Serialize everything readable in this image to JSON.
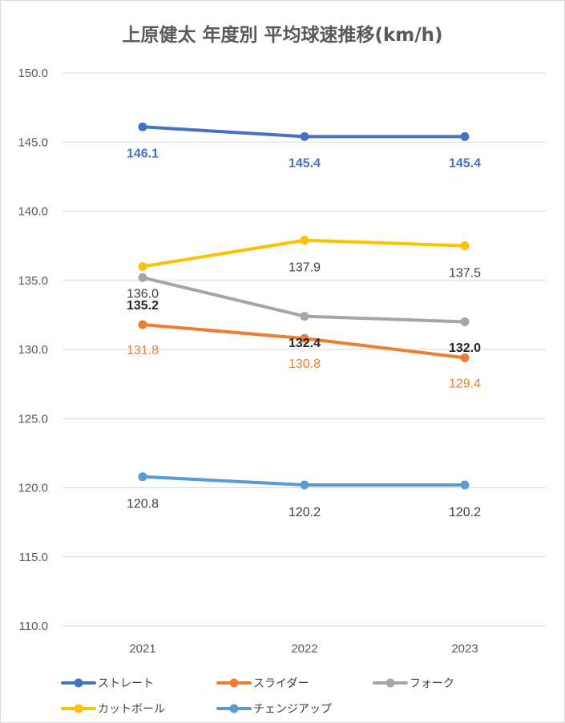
{
  "chart_data": {
    "type": "line",
    "title": "上原健太 年度別 平均球速推移(km/h)",
    "xlabel": "",
    "ylabel": "",
    "categories": [
      "2021",
      "2022",
      "2023"
    ],
    "ylim": [
      110,
      150
    ],
    "y_ticks": [
      "150.0",
      "145.0",
      "140.0",
      "135.0",
      "130.0",
      "125.0",
      "120.0",
      "115.0",
      "110.0"
    ],
    "y_tick_values": [
      150,
      145,
      140,
      135,
      130,
      125,
      120,
      115,
      110
    ],
    "grid": true,
    "legend_position": "bottom",
    "series": [
      {
        "name": "ストレート",
        "values": [
          146.1,
          145.4,
          145.4
        ],
        "labels": [
          "146.1",
          "145.4",
          "145.4"
        ],
        "color": "#4472C4",
        "label_color": "#4472C4",
        "label_bold": true
      },
      {
        "name": "スライダー",
        "values": [
          131.8,
          130.8,
          129.4
        ],
        "labels": [
          "131.8",
          "130.8",
          "129.4"
        ],
        "color": "#ED7D31",
        "label_color": "#ED7D31",
        "label_bold": false
      },
      {
        "name": "フォーク",
        "values": [
          135.2,
          132.4,
          132.0
        ],
        "labels": [
          "135.2",
          "132.4",
          "132.0"
        ],
        "color": "#A5A5A5",
        "label_color": "#262626",
        "label_bold": true
      },
      {
        "name": "カットボール",
        "values": [
          136.0,
          137.9,
          137.5
        ],
        "labels": [
          "136.0",
          "137.9",
          "137.5"
        ],
        "color": "#FFC000",
        "label_color": "#404040",
        "label_bold": false
      },
      {
        "name": "チェンジアップ",
        "values": [
          120.8,
          120.2,
          120.2
        ],
        "labels": [
          "120.8",
          "120.2",
          "120.2"
        ],
        "color": "#5B9BD5",
        "label_color": "#404040",
        "label_bold": false
      }
    ]
  }
}
